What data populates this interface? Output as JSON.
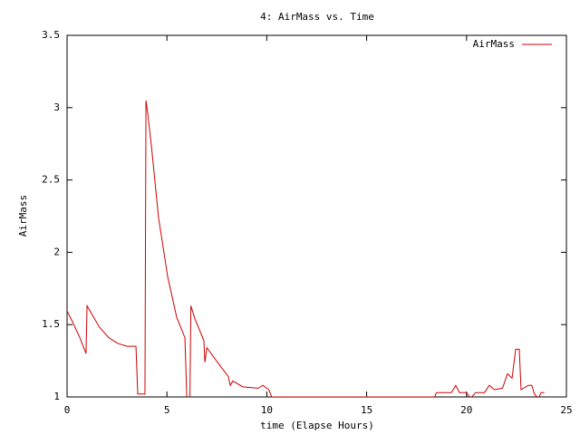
{
  "chart_data": {
    "type": "line",
    "title": "4: AirMass vs. Time",
    "xlabel": "time (Elapse Hours)",
    "ylabel": "AirMass",
    "xlim": [
      0,
      25
    ],
    "ylim": [
      1,
      3.5
    ],
    "xticks": [
      0,
      5,
      10,
      15,
      20,
      25
    ],
    "yticks": [
      1,
      1.5,
      2,
      2.5,
      3,
      3.5
    ],
    "grid": false,
    "legend": "top-right",
    "series": [
      {
        "name": "AirMass",
        "color": "#cc0000",
        "x": [
          0,
          0.27,
          0.64,
          0.95,
          1.0,
          1.63,
          2.09,
          2.54,
          3.0,
          3.45,
          3.54,
          3.9,
          3.95,
          4.04,
          4.22,
          4.58,
          5.04,
          5.49,
          5.9,
          6.0,
          6.15,
          6.2,
          6.4,
          6.85,
          6.9,
          7.0,
          7.53,
          8.08,
          8.17,
          8.3,
          8.8,
          9.57,
          9.8,
          10.1,
          10.25,
          18.4,
          18.5,
          19.24,
          19.46,
          19.65,
          20.0,
          20.2,
          20.45,
          20.9,
          21.14,
          21.4,
          21.8,
          22.05,
          22.28,
          22.46,
          22.64,
          22.73,
          23.09,
          23.27,
          23.4,
          23.6,
          23.73,
          23.9
        ],
        "values": [
          1.595,
          1.52,
          1.41,
          1.3,
          1.63,
          1.48,
          1.41,
          1.37,
          1.35,
          1.35,
          1.02,
          1.02,
          3.05,
          2.96,
          2.74,
          2.24,
          1.83,
          1.55,
          1.41,
          0.98,
          0.98,
          1.63,
          1.54,
          1.39,
          1.24,
          1.34,
          1.24,
          1.14,
          1.08,
          1.11,
          1.07,
          1.06,
          1.08,
          1.05,
          1.0,
          1.0,
          1.03,
          1.03,
          1.08,
          1.03,
          1.03,
          0.99,
          1.03,
          1.03,
          1.08,
          1.05,
          1.06,
          1.16,
          1.13,
          1.33,
          1.33,
          1.05,
          1.08,
          1.08,
          1.02,
          0.99,
          1.03,
          1.03
        ]
      }
    ]
  }
}
